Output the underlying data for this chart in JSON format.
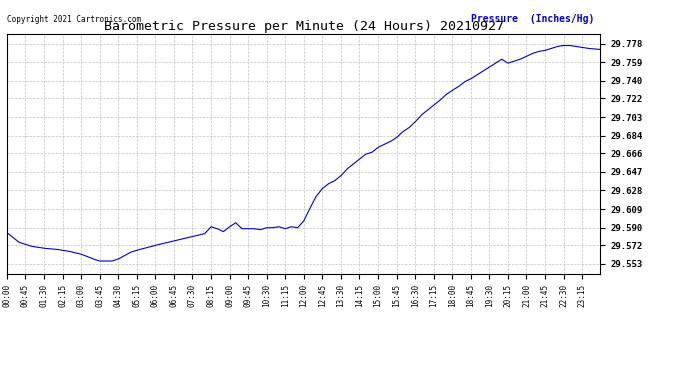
{
  "title": "Barometric Pressure per Minute (24 Hours) 20210927",
  "copyright_text": "Copyright 2021 Cartronics.com",
  "legend_text": "Pressure  (Inches/Hg)",
  "line_color": "#0000CC",
  "background_color": "#ffffff",
  "grid_color": "#bbbbbb",
  "yticks": [
    29.553,
    29.572,
    29.59,
    29.609,
    29.628,
    29.647,
    29.666,
    29.684,
    29.703,
    29.722,
    29.74,
    29.759,
    29.778
  ],
  "ylim_min": 29.543,
  "ylim_max": 29.788,
  "xtick_labels": [
    "00:00",
    "00:45",
    "01:30",
    "02:15",
    "03:00",
    "03:45",
    "04:30",
    "05:15",
    "06:00",
    "06:45",
    "07:30",
    "08:15",
    "09:00",
    "09:45",
    "10:30",
    "11:15",
    "12:00",
    "12:45",
    "13:30",
    "14:15",
    "15:00",
    "15:45",
    "16:30",
    "17:15",
    "18:00",
    "18:45",
    "19:30",
    "20:15",
    "21:00",
    "21:45",
    "22:30",
    "23:15"
  ],
  "pressure_profile": {
    "00:00": 29.585,
    "00:30": 29.575,
    "01:00": 29.571,
    "01:30": 29.569,
    "02:00": 29.568,
    "02:30": 29.566,
    "03:00": 29.563,
    "03:30": 29.558,
    "03:45": 29.556,
    "04:00": 29.556,
    "04:15": 29.556,
    "04:30": 29.558,
    "05:00": 29.565,
    "05:15": 29.567,
    "06:00": 29.572,
    "06:30": 29.575,
    "07:00": 29.578,
    "07:30": 29.581,
    "08:00": 29.584,
    "08:15": 29.591,
    "08:30": 29.589,
    "08:45": 29.586,
    "09:00": 29.591,
    "09:15": 29.595,
    "09:30": 29.589,
    "09:45": 29.589,
    "10:00": 29.589,
    "10:15": 29.588,
    "10:30": 29.59,
    "10:45": 29.59,
    "11:00": 29.591,
    "11:15": 29.589,
    "11:30": 29.591,
    "11:45": 29.59,
    "12:00": 29.597,
    "12:15": 29.61,
    "12:30": 29.622,
    "12:45": 29.63,
    "13:00": 29.635,
    "13:15": 29.638,
    "13:30": 29.643,
    "13:45": 29.65,
    "14:00": 29.655,
    "14:15": 29.66,
    "14:30": 29.665,
    "14:45": 29.667,
    "15:00": 29.672,
    "15:15": 29.675,
    "15:30": 29.678,
    "15:45": 29.682,
    "16:00": 29.688,
    "16:15": 29.692,
    "16:30": 29.698,
    "16:45": 29.705,
    "17:00": 29.71,
    "17:15": 29.715,
    "17:30": 29.72,
    "17:45": 29.726,
    "18:00": 29.73,
    "18:15": 29.734,
    "18:30": 29.739,
    "18:45": 29.742,
    "19:00": 29.746,
    "19:15": 29.75,
    "19:30": 29.754,
    "19:45": 29.758,
    "20:00": 29.762,
    "20:15": 29.758,
    "20:30": 29.76,
    "20:45": 29.762,
    "21:00": 29.765,
    "21:15": 29.768,
    "21:30": 29.77,
    "21:45": 29.771,
    "22:00": 29.773,
    "22:15": 29.775,
    "22:30": 29.776,
    "22:45": 29.776,
    "23:00": 29.775,
    "23:15": 29.774,
    "23:30": 29.773,
    "23:59": 29.772
  }
}
